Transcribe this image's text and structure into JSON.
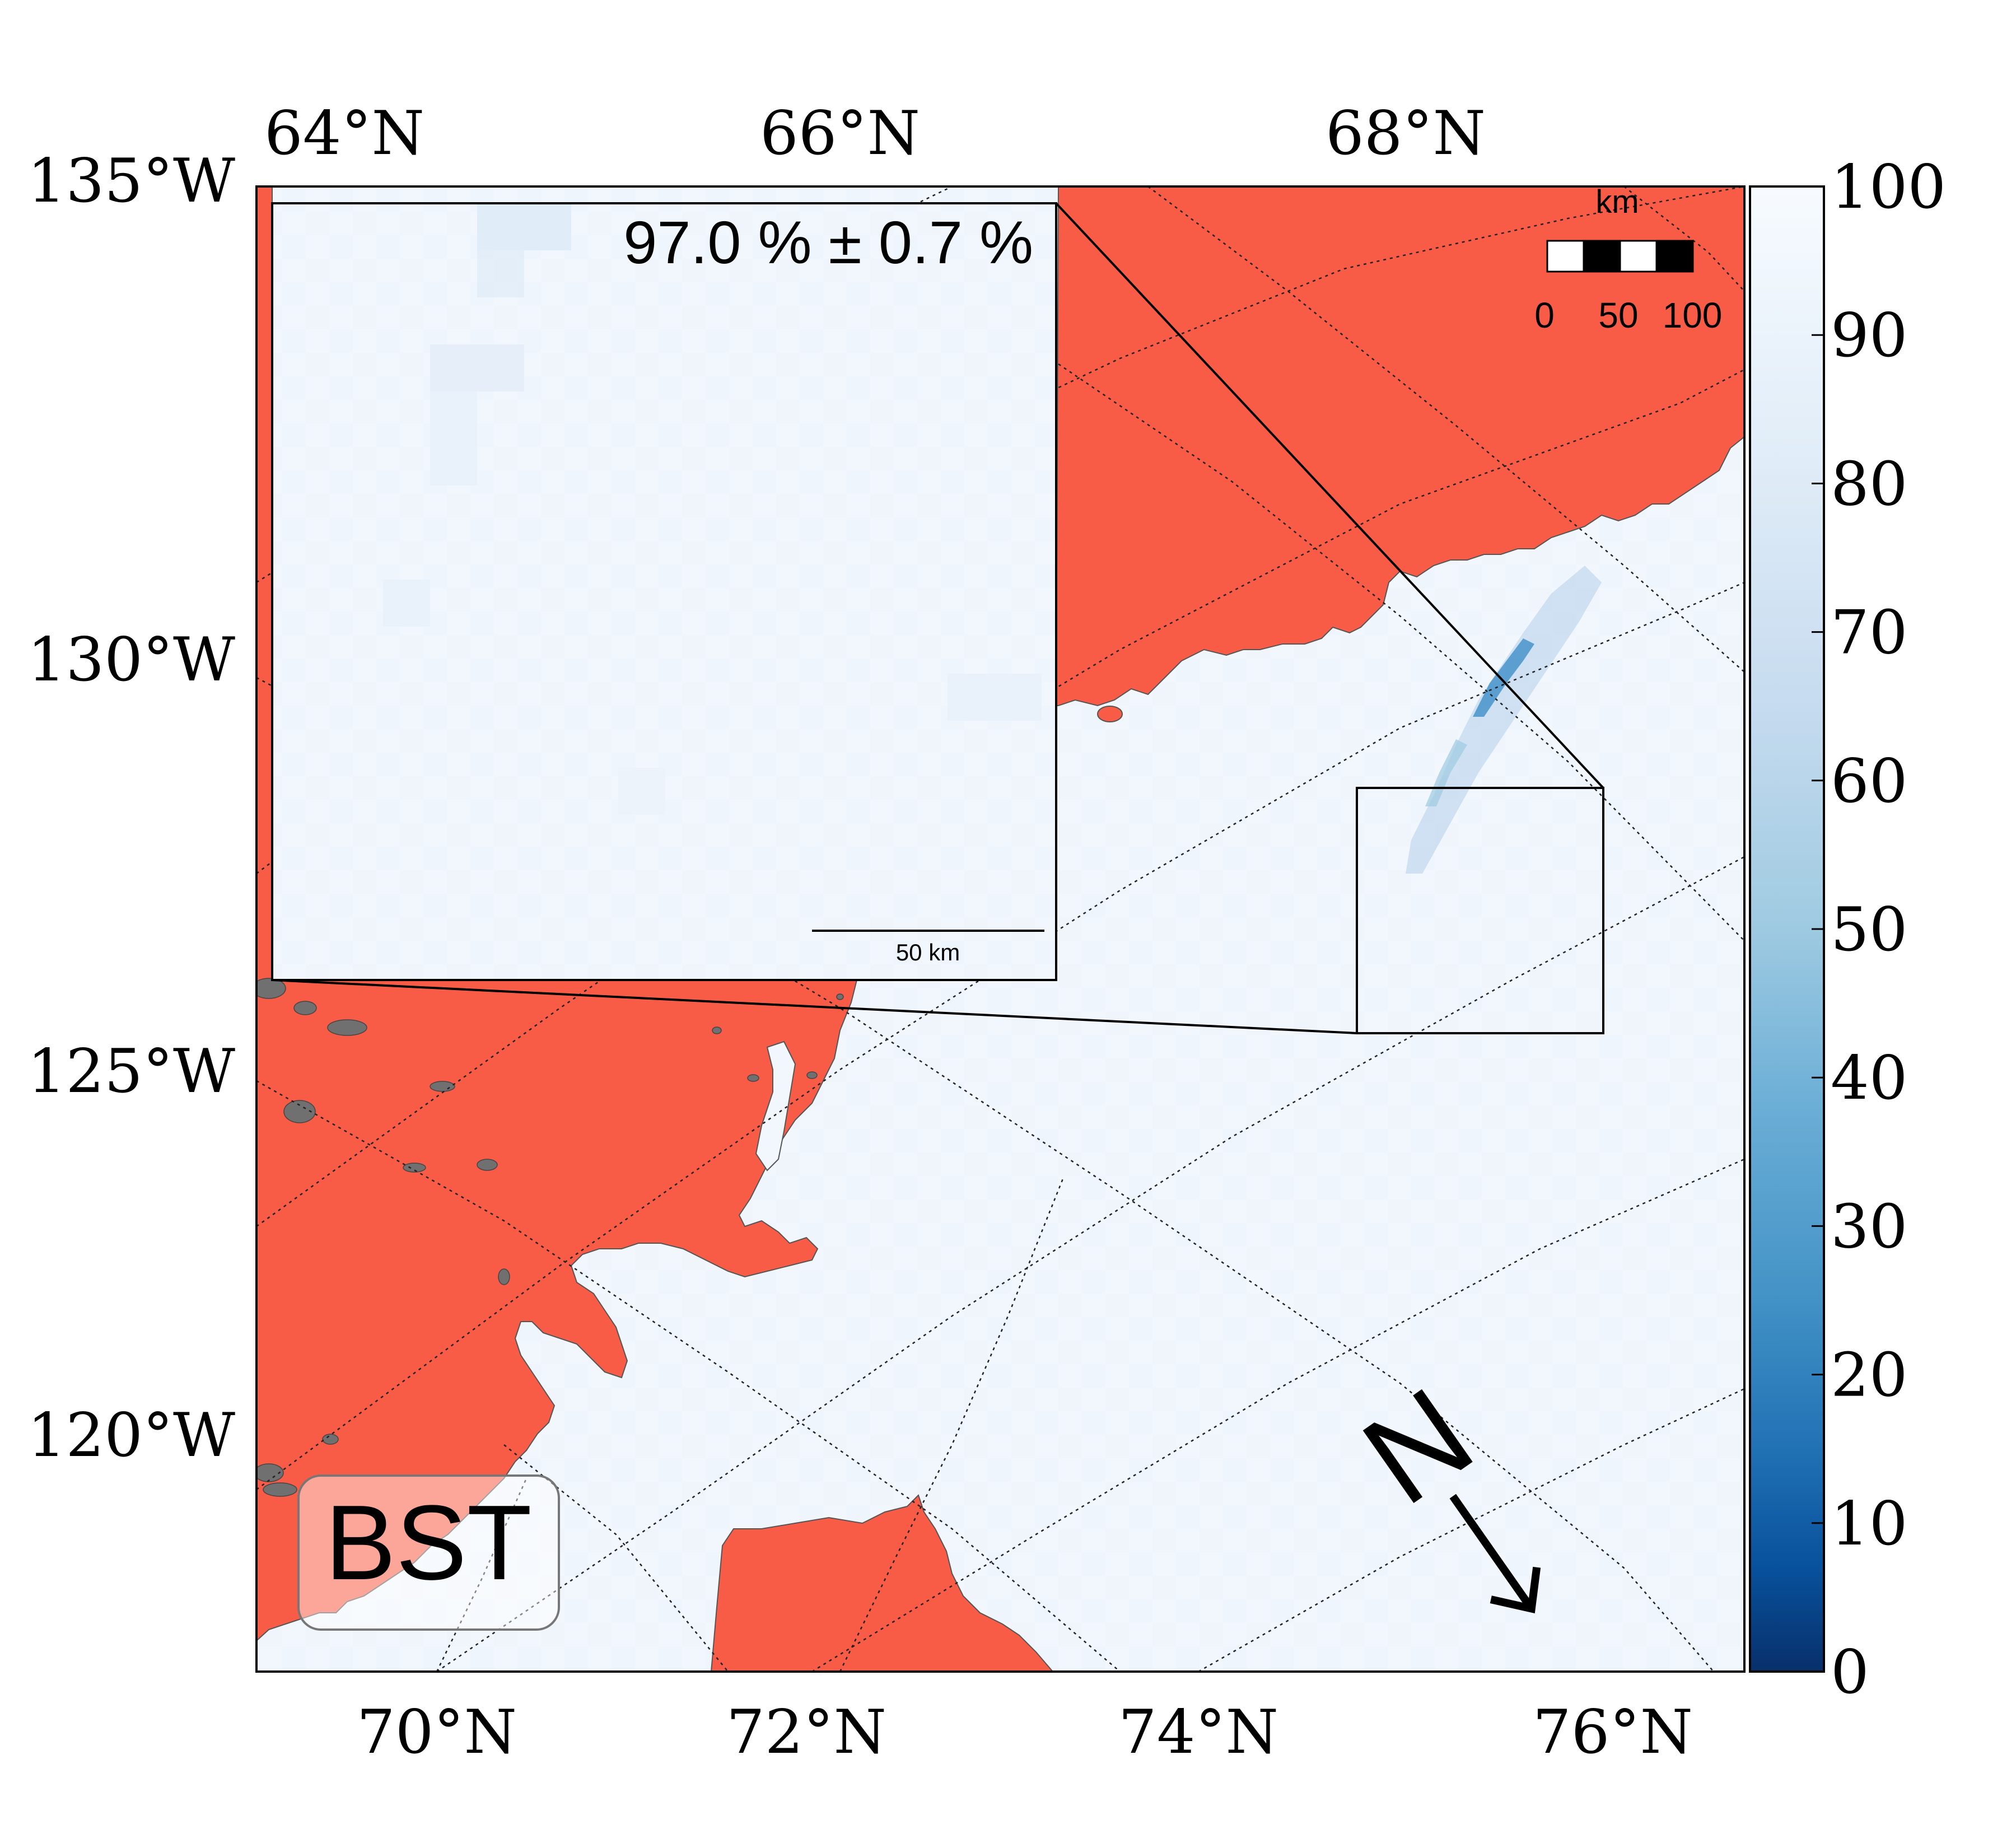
{
  "map": {
    "top_ticks": [
      "64°N",
      "66°N",
      "68°N"
    ],
    "bottom_ticks": [
      "70°N",
      "72°N",
      "74°N",
      "76°N"
    ],
    "left_ticks": [
      "135°W",
      "130°W",
      "125°W",
      "120°W"
    ],
    "panel_label": "BST",
    "inset_accuracy": "97.0 % ± 0.7 %",
    "inset_scalebar_label": "50 km",
    "scalebar": {
      "unit": "km",
      "labels": [
        "0",
        "50",
        "100"
      ]
    },
    "north_arrow": "N",
    "colors": {
      "land": "#f95c46",
      "land_lakes": "#707070",
      "water": "#f2f7fd",
      "channel": "#4f98cc"
    }
  },
  "colorbar": {
    "ticks": [
      "100",
      "90",
      "80",
      "70",
      "60",
      "50",
      "40",
      "30",
      "20",
      "10",
      "0"
    ],
    "colormap": "Blues_r",
    "min": 0,
    "max": 100
  }
}
